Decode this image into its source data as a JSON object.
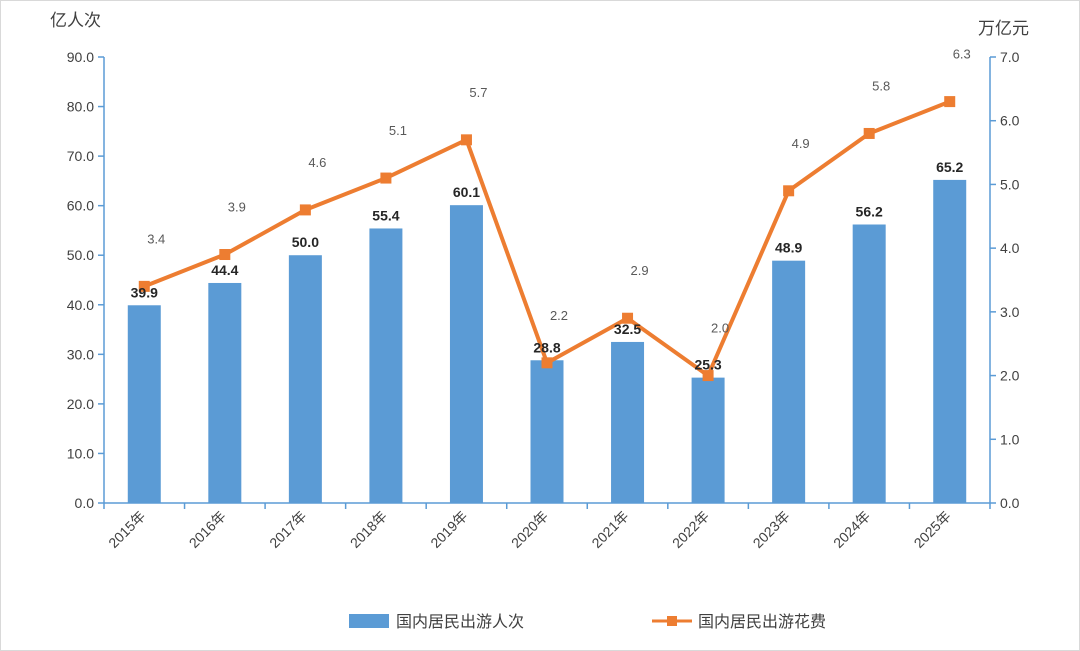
{
  "chart_data": {
    "type": "bar+line",
    "categories": [
      "2015年",
      "2016年",
      "2017年",
      "2018年",
      "2019年",
      "2020年",
      "2021年",
      "2022年",
      "2023年",
      "2024年",
      "2025年"
    ],
    "series": [
      {
        "name": "国内居民出游人次",
        "type": "bar",
        "axis": "left",
        "color": "#5b9bd5",
        "values": [
          39.9,
          44.4,
          50.0,
          55.4,
          60.1,
          28.8,
          32.5,
          25.3,
          48.9,
          56.2,
          65.2
        ],
        "labels": [
          "39.9",
          "44.4",
          "50.0",
          "55.4",
          "60.1",
          "28.8",
          "32.5",
          "25.3",
          "48.9",
          "56.2",
          "65.2"
        ]
      },
      {
        "name": "国内居民出游花费",
        "type": "line",
        "axis": "right",
        "color": "#ed7d31",
        "values": [
          3.4,
          3.9,
          4.6,
          5.1,
          5.7,
          2.2,
          2.9,
          2.0,
          4.9,
          5.8,
          6.3
        ],
        "labels": [
          "3.4",
          "3.9",
          "4.6",
          "5.1",
          "5.7",
          "2.2",
          "2.9",
          "2.0",
          "4.9",
          "5.8",
          "6.3"
        ]
      }
    ],
    "y_left": {
      "unit": "亿人次",
      "min": 0,
      "max": 90,
      "step": 10,
      "ticks": [
        "0.0",
        "10.0",
        "20.0",
        "30.0",
        "40.0",
        "50.0",
        "60.0",
        "70.0",
        "80.0",
        "90.0"
      ]
    },
    "y_right": {
      "unit": "万亿元",
      "min": 0,
      "max": 7,
      "step": 1,
      "ticks": [
        "0.0",
        "1.0",
        "2.0",
        "3.0",
        "4.0",
        "5.0",
        "6.0",
        "7.0"
      ]
    },
    "grid": false,
    "legend": "bottom",
    "axis_color": "#5b9bd5"
  }
}
